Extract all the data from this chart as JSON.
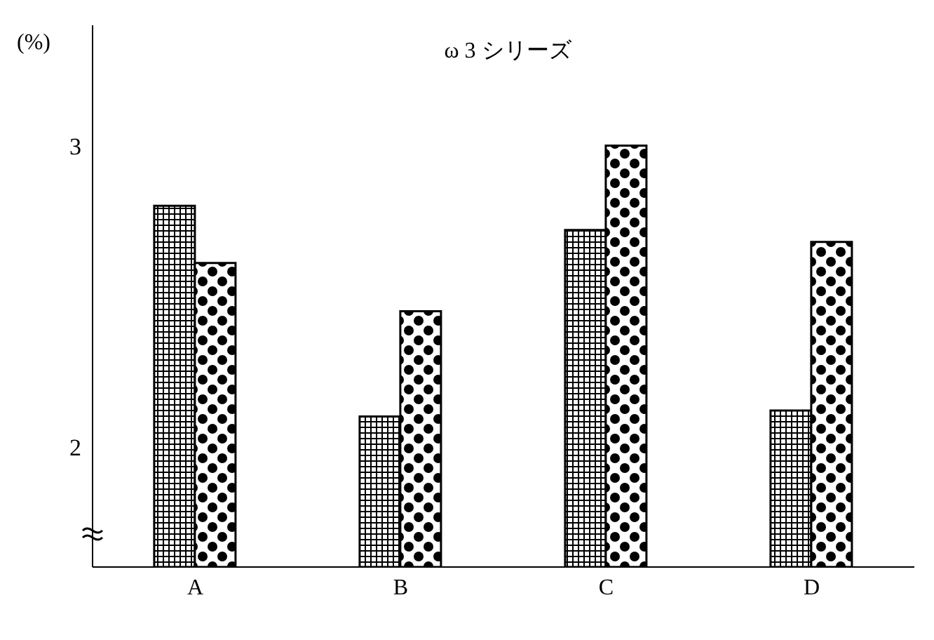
{
  "chart_data": {
    "type": "bar",
    "title": "ω 3 シリーズ",
    "ylabel": "(%)",
    "categories": [
      "A",
      "B",
      "C",
      "D"
    ],
    "series": [
      {
        "color": "#000000",
        "values": [
          2.8,
          2.1,
          2.72,
          2.12
        ]
      },
      {
        "color": "#000000",
        "values": [
          2.61,
          2.45,
          3.0,
          2.68
        ]
      }
    ],
    "ylim": [
      1.6,
      3.4
    ],
    "yticks": [
      2,
      3
    ],
    "grid": false,
    "legend": false
  }
}
